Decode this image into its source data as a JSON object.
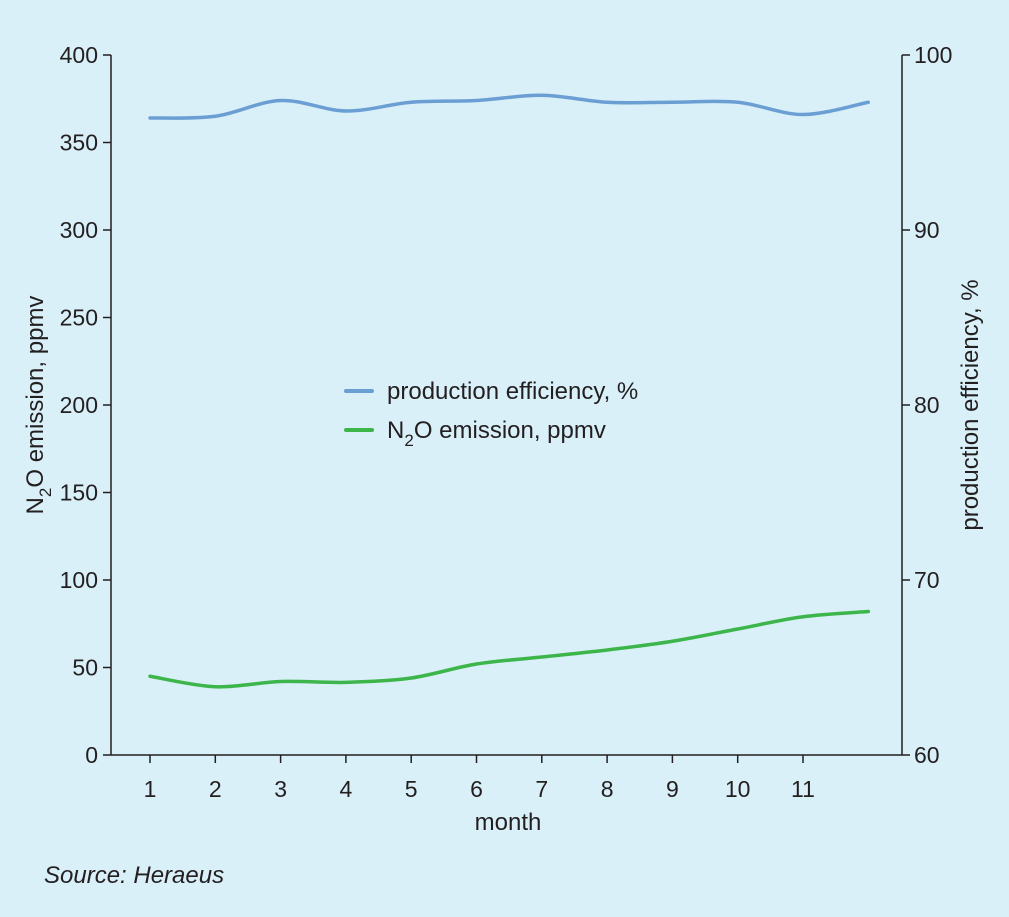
{
  "chart_data": {
    "type": "line",
    "x": [
      1,
      2,
      3,
      4,
      5,
      6,
      7,
      8,
      9,
      10,
      11,
      12
    ],
    "x_tick_labels": [
      "1",
      "2",
      "3",
      "4",
      "5",
      "6",
      "7",
      "8",
      "9",
      "10",
      "11"
    ],
    "xlabel": "month",
    "ylabel_left": "N2O emission, ppmv",
    "ylabel_left_parts": {
      "pre": "N",
      "sub": "2",
      "post": "O emission, ppmv"
    },
    "ylim_left": [
      0,
      400
    ],
    "yticks_left": [
      0,
      50,
      100,
      150,
      200,
      250,
      300,
      350,
      400
    ],
    "ylabel_right": "production efficiency, %",
    "ylim_right": [
      60,
      100
    ],
    "yticks_right": [
      60,
      70,
      80,
      90,
      100
    ],
    "grid": false,
    "legend_position": "center",
    "series": [
      {
        "name": "production efficiency, %",
        "axis": "right",
        "color": "#6b9fd4",
        "values": [
          96.4,
          96.5,
          97.4,
          96.8,
          97.3,
          97.4,
          97.7,
          97.3,
          97.3,
          97.3,
          96.6,
          97.3
        ]
      },
      {
        "name": "N2O emission, ppmv",
        "name_parts": {
          "pre": "N",
          "sub": "2",
          "post": "O emission, ppmv"
        },
        "axis": "left",
        "color": "#3cb54a",
        "values": [
          45,
          39,
          42,
          41.5,
          44,
          52,
          56,
          60,
          65,
          72,
          79,
          82
        ]
      }
    ]
  },
  "source": "Source: Heraeus"
}
